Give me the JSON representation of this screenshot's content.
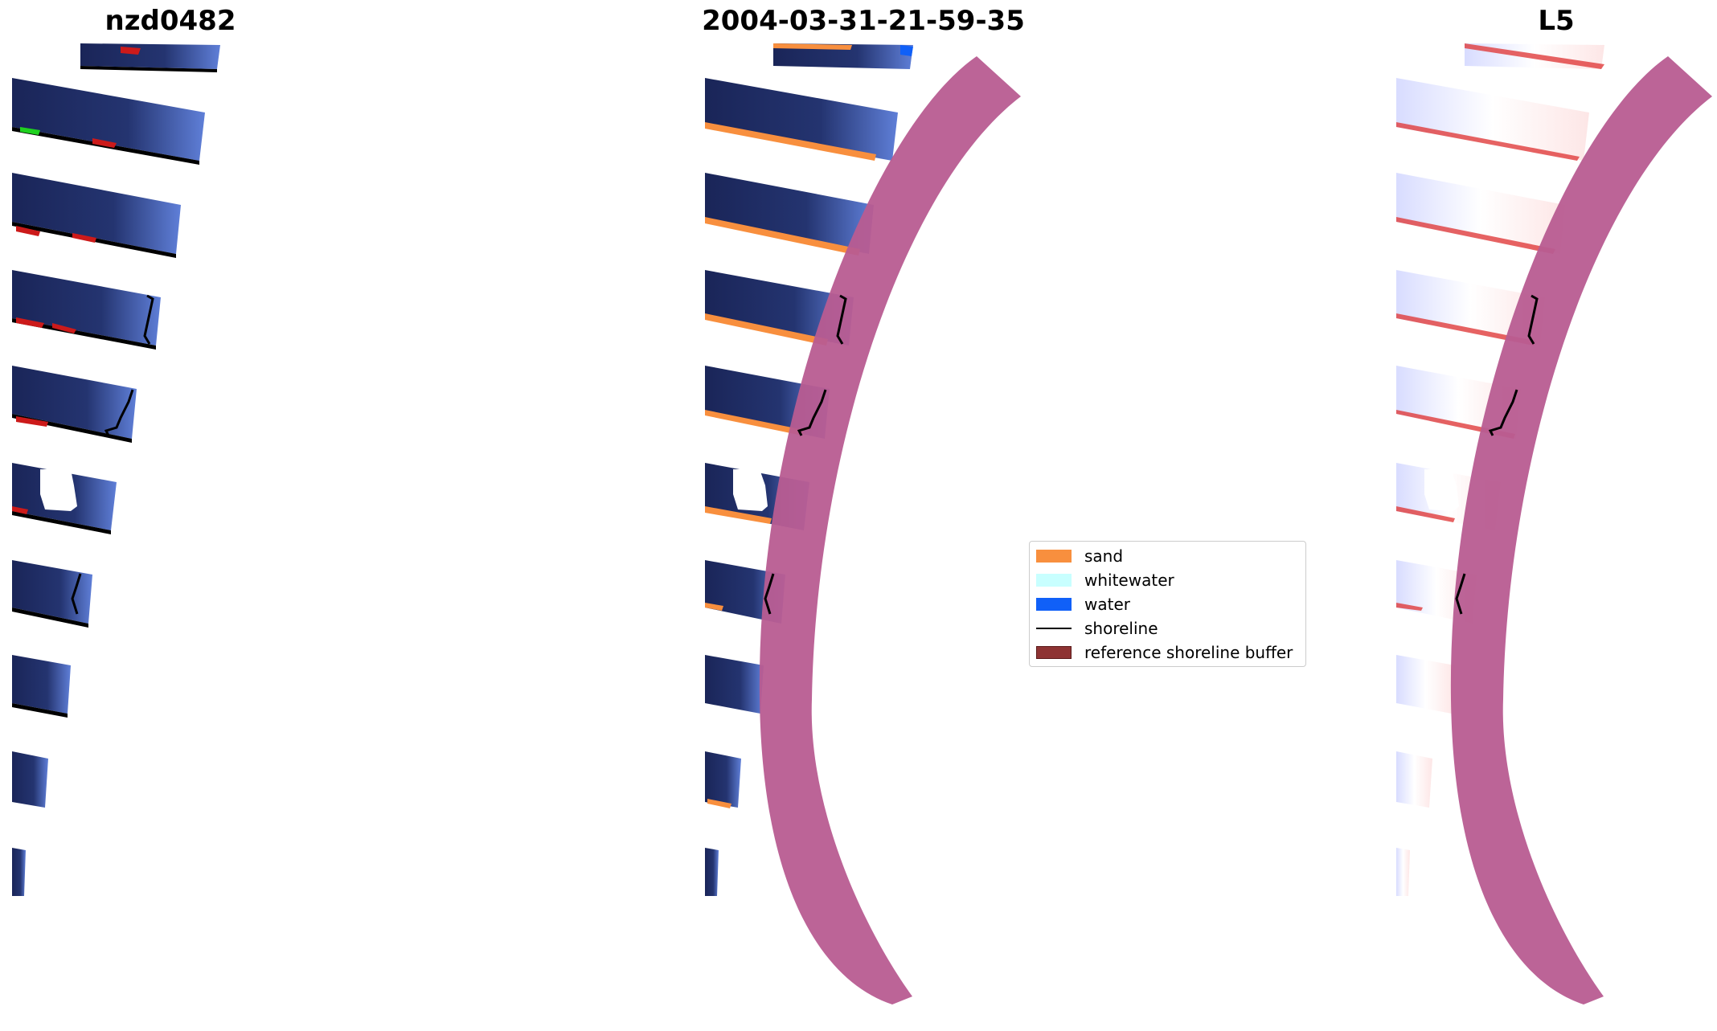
{
  "panels": [
    {
      "title": "nzd0482"
    },
    {
      "title": "2004-03-31-21-59-35"
    },
    {
      "title": "L5"
    }
  ],
  "legend": {
    "items": [
      {
        "label": "sand",
        "color": "#F88F3E",
        "kind": "patch"
      },
      {
        "label": "whitewater",
        "color": "#C8FFFF",
        "kind": "patch"
      },
      {
        "label": "water",
        "color": "#1060F8",
        "kind": "patch"
      },
      {
        "label": "shoreline",
        "color": "#000000",
        "kind": "line"
      },
      {
        "label": "reference shoreline buffer",
        "color": "#8E3333",
        "kind": "patch"
      }
    ]
  },
  "colors": {
    "image_water": "#1B2A5C",
    "buffer": "#B85C91",
    "index_low": "#E03C3C",
    "index_high": "#2030D0"
  }
}
